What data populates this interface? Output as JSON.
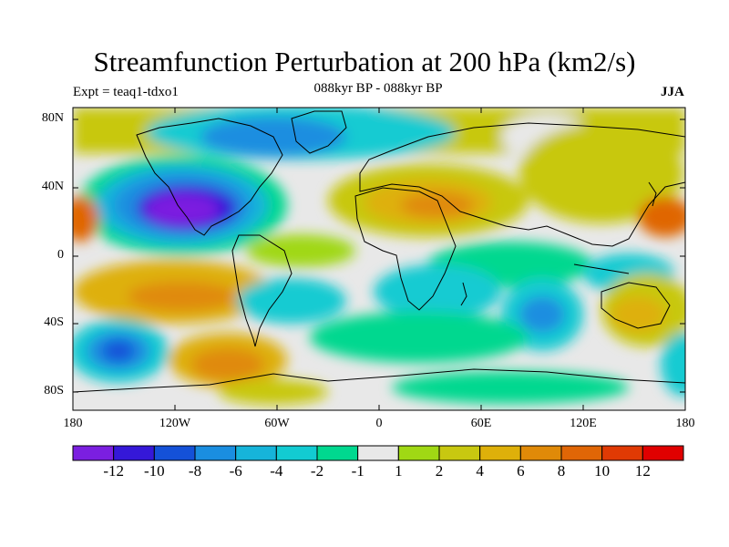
{
  "title": "Streamfunction Perturbation at 200 hPa (km2/s)",
  "left_label": "Expt = teaq1-tdxo1",
  "center_label": "088kyr BP - 088kyr BP",
  "right_label": "JJA",
  "map": {
    "lat_ticks": [
      "80N",
      "40N",
      "0",
      "40S",
      "80S"
    ],
    "lon_ticks": [
      "180",
      "120W",
      "60W",
      "0",
      "60E",
      "120E",
      "180"
    ]
  },
  "colorbar": {
    "colors": [
      "#7b1fe0",
      "#3518d8",
      "#1451d8",
      "#1a8ee0",
      "#16b4da",
      "#12cbd2",
      "#00d88f",
      "#e8e8e8",
      "#a0d814",
      "#c8c810",
      "#deb00a",
      "#e08a08",
      "#e06606",
      "#e03a04",
      "#e00000"
    ],
    "labels": [
      "-12",
      "-10",
      "-8",
      "-6",
      "-4",
      "-2",
      "-1",
      "1",
      "2",
      "4",
      "6",
      "8",
      "10",
      "12"
    ]
  }
}
